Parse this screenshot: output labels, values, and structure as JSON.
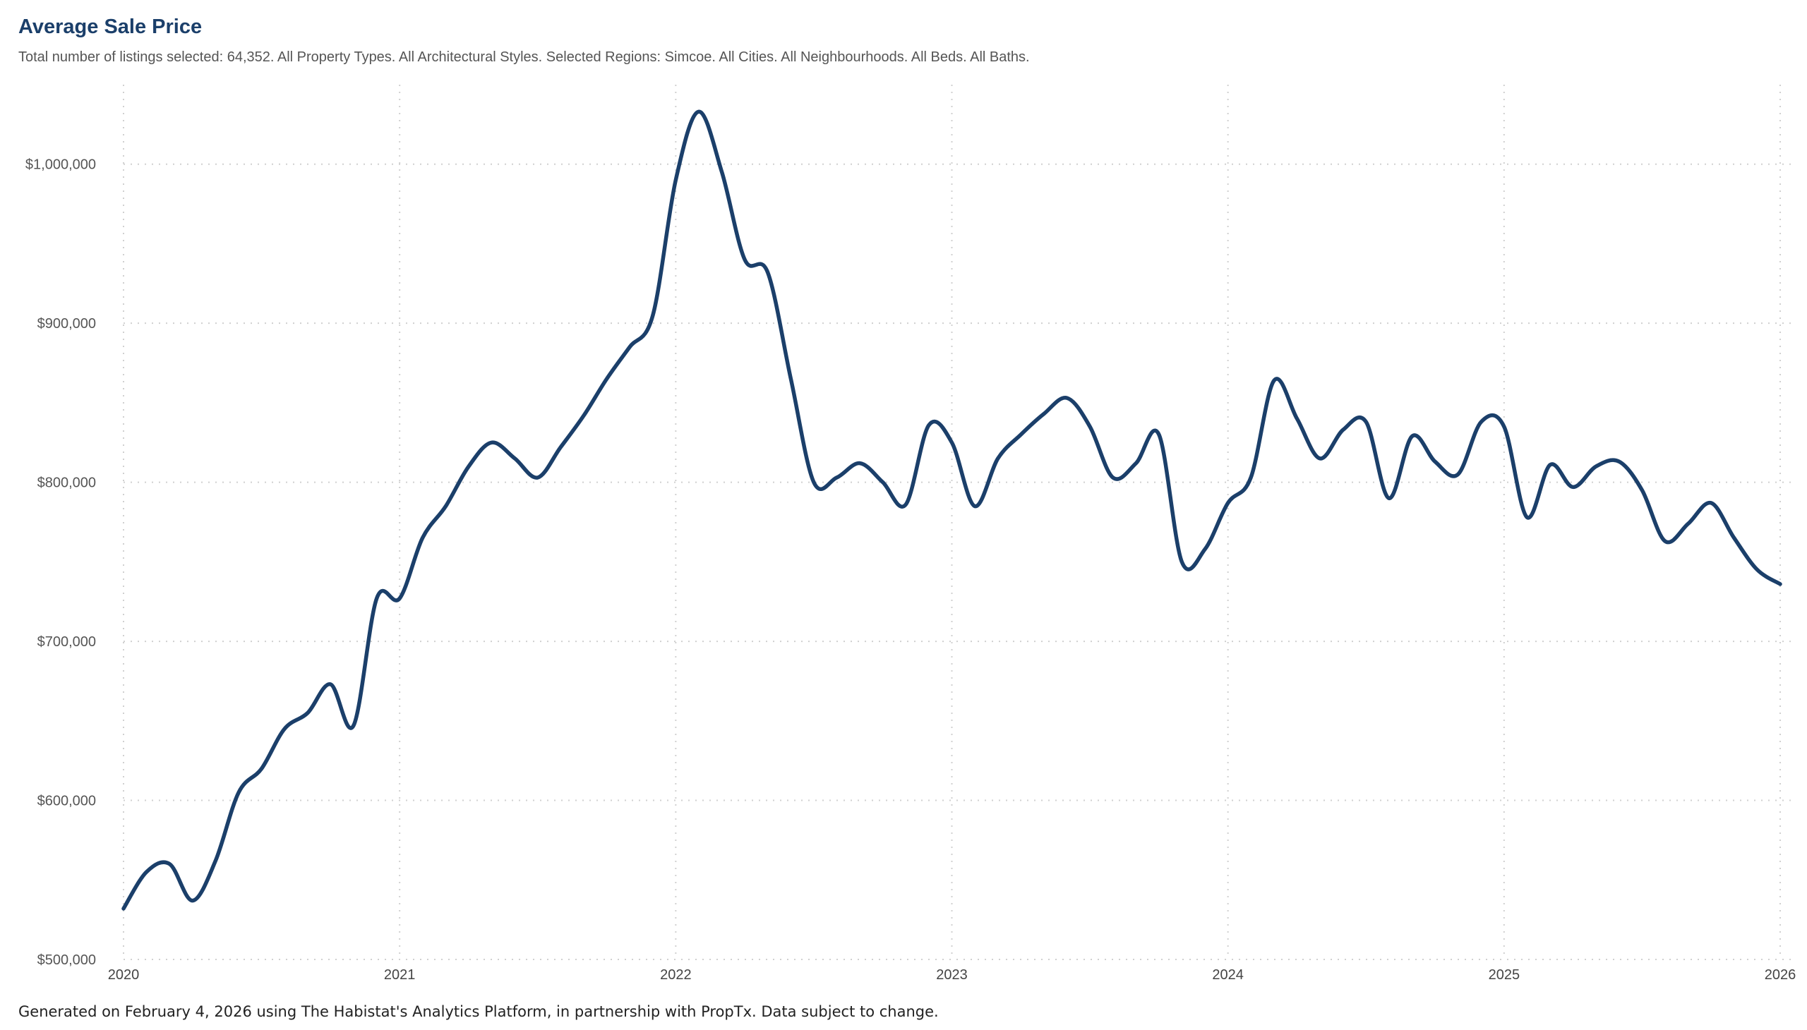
{
  "header": {
    "title": "Average Sale Price",
    "subtitle": "Total number of listings selected: 64,352. All Property Types. All Architectural Styles. Selected Regions: Simcoe. All Cities. All Neighbourhoods. All Beds. All Baths."
  },
  "footer": {
    "text": "Generated on February 4, 2026 using The Habistat's Analytics Platform, in partnership with PropTx. Data subject to change."
  },
  "colors": {
    "line": "#1b3f6a",
    "grid": "#d0d0d0"
  },
  "chart_data": {
    "type": "line",
    "title": "Average Sale Price",
    "xlabel": "",
    "ylabel": "",
    "grid": true,
    "grid_style": "dotted",
    "xlim": [
      2020,
      2026
    ],
    "ylim": [
      500000,
      1050000
    ],
    "y_ticks": [
      500000,
      600000,
      700000,
      800000,
      900000,
      1000000
    ],
    "y_tick_labels": [
      "$500,000",
      "$600,000",
      "$700,000",
      "$800,000",
      "$900,000",
      "$1,000,000"
    ],
    "x_ticks": [
      2020,
      2021,
      2022,
      2023,
      2024,
      2025,
      2026
    ],
    "x_tick_labels": [
      "2020",
      "2021",
      "2022",
      "2023",
      "2024",
      "2025",
      "2026"
    ],
    "series": [
      {
        "x": [
          2020.0,
          2020.083,
          2020.167,
          2020.25,
          2020.333,
          2020.417,
          2020.5,
          2020.583,
          2020.667,
          2020.75,
          2020.833,
          2020.917,
          2021.0,
          2021.083,
          2021.167,
          2021.25,
          2021.333,
          2021.417,
          2021.5,
          2021.583,
          2021.667,
          2021.75,
          2021.833,
          2021.917,
          2022.0,
          2022.083,
          2022.167,
          2022.25,
          2022.333,
          2022.417,
          2022.5,
          2022.583,
          2022.667,
          2022.75,
          2022.833,
          2022.917,
          2023.0,
          2023.083,
          2023.167,
          2023.25,
          2023.333,
          2023.417,
          2023.5,
          2023.583,
          2023.667,
          2023.75,
          2023.833,
          2023.917,
          2024.0,
          2024.083,
          2024.167,
          2024.25,
          2024.333,
          2024.417,
          2024.5,
          2024.583,
          2024.667,
          2024.75,
          2024.833,
          2024.917,
          2025.0,
          2025.083,
          2025.167,
          2025.25,
          2025.333,
          2025.417,
          2025.5,
          2025.583,
          2025.667,
          2025.75,
          2025.833,
          2025.917,
          2026.0
        ],
        "y": [
          532000,
          555000,
          560000,
          537000,
          562000,
          605000,
          620000,
          645000,
          655000,
          673000,
          647000,
          727000,
          727000,
          765000,
          785000,
          810000,
          825000,
          815000,
          803000,
          822000,
          842000,
          865000,
          885000,
          905000,
          990000,
          1033000,
          995000,
          940000,
          932000,
          865000,
          800000,
          803000,
          812000,
          800000,
          786000,
          836000,
          825000,
          785000,
          815000,
          830000,
          843000,
          853000,
          835000,
          803000,
          812000,
          830000,
          750000,
          758000,
          787000,
          803000,
          864000,
          840000,
          815000,
          833000,
          838000,
          790000,
          829000,
          813000,
          805000,
          838000,
          835000,
          778000,
          811000,
          797000,
          810000,
          813000,
          795000,
          763000,
          774000,
          787000,
          765000,
          745000,
          736000
        ]
      }
    ]
  }
}
